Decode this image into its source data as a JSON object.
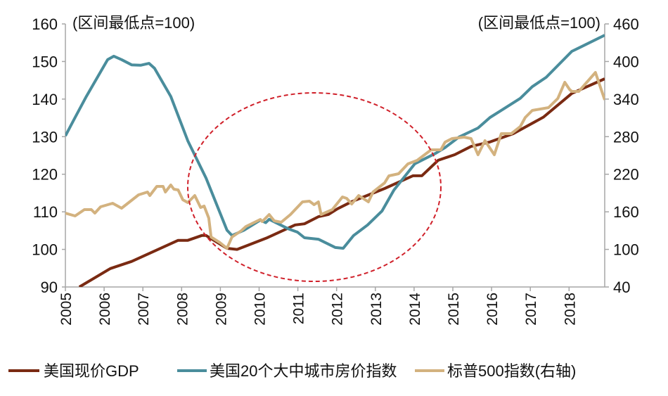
{
  "chart_data": {
    "type": "line",
    "title": "",
    "left_axis_note": "(区间最低点=100)",
    "right_axis_note": "(区间最低点=100)",
    "xlabel": "",
    "x_tick_labels": [
      "2005",
      "2006",
      "2007",
      "2008",
      "2009",
      "2010",
      "2011",
      "2012",
      "2013",
      "2014",
      "2015",
      "2016",
      "2017",
      "2018"
    ],
    "xlim": [
      2005,
      2018.92
    ],
    "y_left": {
      "range": [
        90,
        160
      ],
      "ticks": [
        90,
        100,
        110,
        120,
        130,
        140,
        150,
        160
      ]
    },
    "y_right": {
      "range": [
        40,
        460
      ],
      "ticks": [
        40,
        100,
        160,
        220,
        280,
        340,
        400,
        460
      ]
    },
    "grid": false,
    "legend_position": "bottom",
    "annotation": "red dashed ellipse around 2008-2014",
    "series": [
      {
        "name": "美国现价GDP",
        "axis": "left",
        "color": "#7a2a12",
        "x": [
          2005.36,
          2006.16,
          2006.71,
          2007.91,
          2008.16,
          2008.52,
          2008.63,
          2009.17,
          2009.43,
          2009.66,
          2010.21,
          2010.93,
          2011.17,
          2011.53,
          2011.79,
          2012.02,
          2012.39,
          2013.24,
          2013.97,
          2014.2,
          2014.62,
          2015.05,
          2015.47,
          2015.96,
          2016.56,
          2017.34,
          2018.07,
          2018.92
        ],
        "y": [
          90,
          94.9,
          96.8,
          102.4,
          102.4,
          103.7,
          103.7,
          100.3,
          100.0,
          100.9,
          103.1,
          106.5,
          106.8,
          108.7,
          109.3,
          110.8,
          112.7,
          116.2,
          119.6,
          119.6,
          123.7,
          125.2,
          127.4,
          128.6,
          130.8,
          135.2,
          141.5,
          145.4
        ]
      },
      {
        "name": "美国20个大中城市房价指数",
        "axis": "left",
        "color": "#4a8d9c",
        "x": [
          2005.0,
          2005.25,
          2005.54,
          2006.09,
          2006.25,
          2006.45,
          2006.71,
          2006.94,
          2007.16,
          2007.3,
          2007.72,
          2008.16,
          2008.63,
          2009.17,
          2009.3,
          2009.61,
          2010.03,
          2010.17,
          2010.26,
          2010.75,
          2010.99,
          2011.17,
          2011.53,
          2011.97,
          2012.17,
          2012.44,
          2012.8,
          2013.17,
          2013.48,
          2014.02,
          2014.56,
          2014.8,
          2015.16,
          2015.65,
          2015.96,
          2016.25,
          2016.74,
          2017.05,
          2017.41,
          2018.07,
          2018.25,
          2018.92
        ],
        "y": [
          130.2,
          135.1,
          140.7,
          150.5,
          151.4,
          150.5,
          149.1,
          149.0,
          149.5,
          148.2,
          140.7,
          128.9,
          119.0,
          105.1,
          103.7,
          105.1,
          107.8,
          107.1,
          108.0,
          105.5,
          104.6,
          103.1,
          102.7,
          100.5,
          100.3,
          103.7,
          106.5,
          110.2,
          115.8,
          122.8,
          125.6,
          127.1,
          129.9,
          132.3,
          135.1,
          137.0,
          140.2,
          143.3,
          145.8,
          152.7,
          153.6,
          157.0
        ]
      },
      {
        "name": "标普500指数(右轴)",
        "axis": "right",
        "color": "#d3b27f",
        "x": [
          2005.0,
          2005.25,
          2005.49,
          2005.67,
          2005.76,
          2005.91,
          2006.22,
          2006.45,
          2006.89,
          2007.12,
          2007.18,
          2007.36,
          2007.52,
          2007.58,
          2007.72,
          2007.8,
          2007.91,
          2008.03,
          2008.16,
          2008.34,
          2008.49,
          2008.58,
          2008.7,
          2008.76,
          2008.99,
          2009.17,
          2009.3,
          2009.54,
          2009.66,
          2010.03,
          2010.08,
          2010.26,
          2010.39,
          2010.57,
          2010.81,
          2011.12,
          2011.3,
          2011.42,
          2011.53,
          2011.6,
          2011.89,
          2012.15,
          2012.26,
          2012.39,
          2012.57,
          2012.82,
          2012.94,
          2013.24,
          2013.35,
          2013.6,
          2013.84,
          2014.08,
          2014.44,
          2014.69,
          2014.8,
          2014.98,
          2015.29,
          2015.47,
          2015.65,
          2015.83,
          2016.07,
          2016.25,
          2016.51,
          2016.74,
          2016.87,
          2017.05,
          2017.47,
          2017.71,
          2017.89,
          2018.01,
          2018.07,
          2018.25,
          2018.68,
          2018.92
        ],
        "y": [
          157.9,
          153.4,
          163.5,
          163.5,
          157.9,
          168.0,
          173.6,
          165.8,
          187.1,
          191.6,
          186.0,
          200.6,
          200.6,
          191.6,
          202.8,
          196.1,
          195.0,
          179.2,
          174.8,
          186.0,
          166.9,
          169.1,
          150.1,
          119.7,
          110.8,
          101.8,
          119.7,
          129.8,
          136.6,
          147.8,
          144.4,
          155.7,
          145.6,
          143.3,
          155.7,
          175.9,
          177.0,
          171.4,
          175.9,
          155.7,
          163.5,
          183.7,
          181.5,
          172.5,
          186.0,
          175.9,
          191.6,
          206.2,
          217.4,
          220.8,
          236.5,
          242.1,
          259.0,
          259.0,
          271.3,
          277.0,
          279.2,
          277.0,
          251.1,
          273.6,
          251.1,
          284.8,
          284.8,
          296.0,
          310.6,
          321.9,
          326.4,
          341.0,
          366.8,
          355.6,
          352.2,
          352.2,
          382.5,
          338.7
        ]
      }
    ]
  }
}
